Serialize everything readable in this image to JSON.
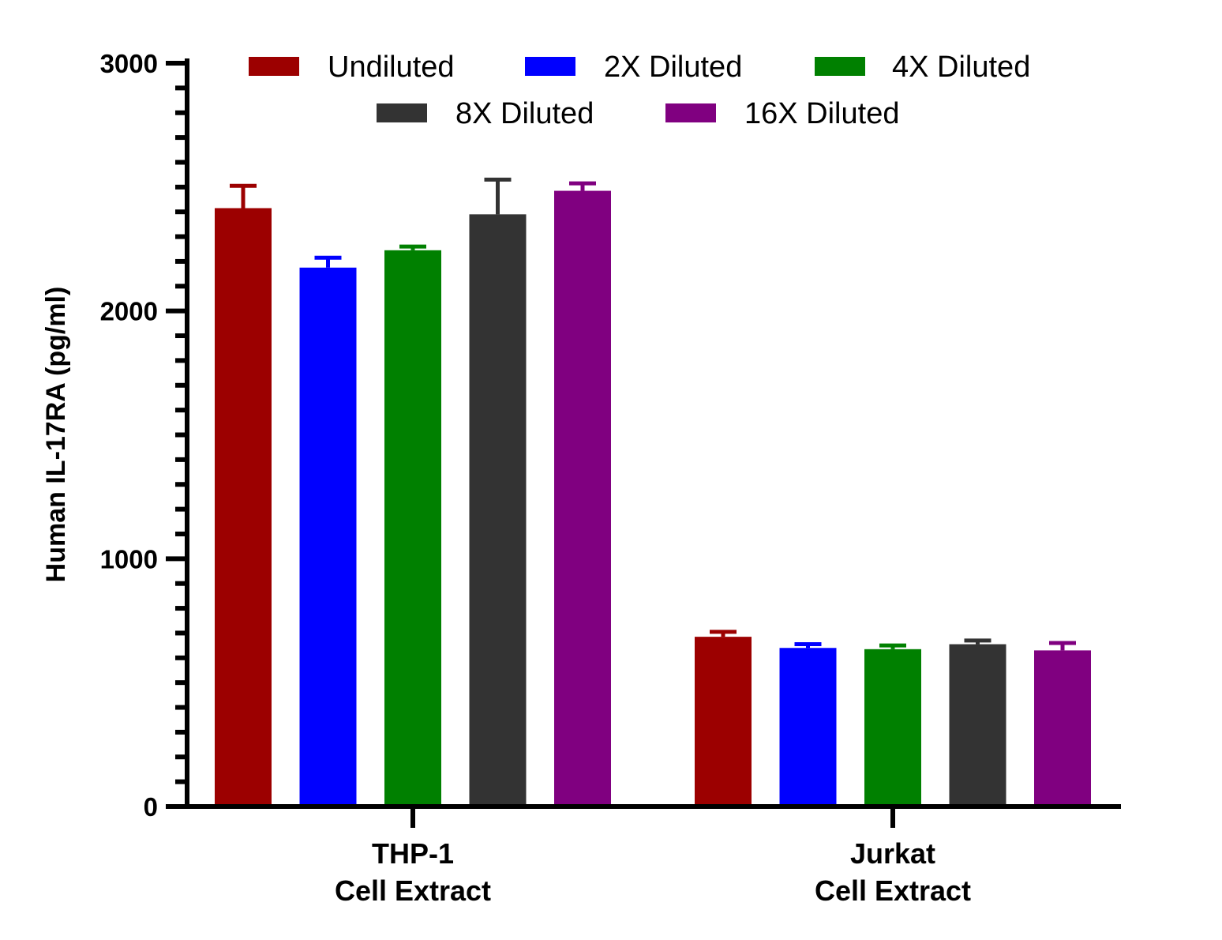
{
  "chart_data": {
    "type": "bar",
    "ylabel": "Human IL-17RA (pg/ml)",
    "ylim": [
      0,
      3000
    ],
    "yticks": [
      "0",
      "1000",
      "2000",
      "3000"
    ],
    "categories": [
      {
        "line1": "THP-1",
        "line2": "Cell Extract"
      },
      {
        "line1": "Jurkat",
        "line2": "Cell Extract"
      }
    ],
    "series": [
      {
        "name": "Undiluted",
        "color": "#9c0000",
        "values": [
          2415,
          685
        ],
        "errors": [
          90,
          20
        ]
      },
      {
        "name": "2X Diluted",
        "color": "#0000ff",
        "values": [
          2175,
          640
        ],
        "errors": [
          40,
          15
        ]
      },
      {
        "name": "4X Diluted",
        "color": "#008000",
        "values": [
          2245,
          635
        ],
        "errors": [
          15,
          15
        ]
      },
      {
        "name": "8X Diluted",
        "color": "#333333",
        "values": [
          2390,
          655
        ],
        "errors": [
          140,
          15
        ]
      },
      {
        "name": "16X Diluted",
        "color": "#800080",
        "values": [
          2485,
          630
        ],
        "errors": [
          30,
          30
        ]
      }
    ],
    "grid": false,
    "legend": "top"
  }
}
